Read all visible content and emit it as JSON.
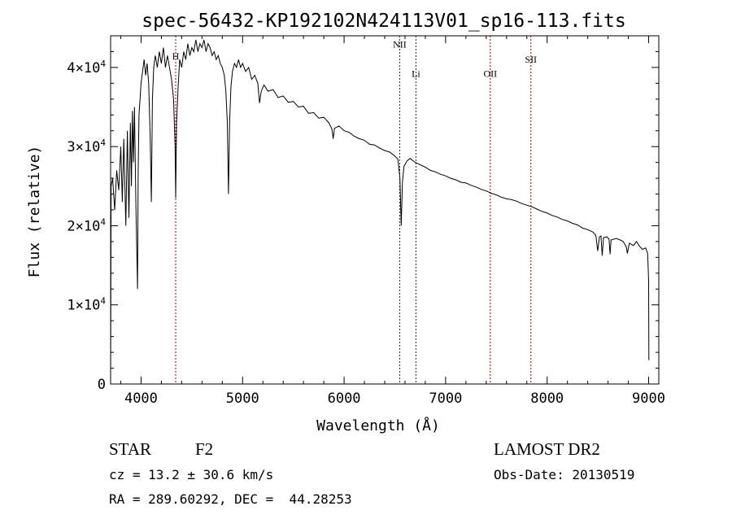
{
  "chart_data": {
    "type": "line",
    "title": "spec-56432-KP192102N424113V01_sp16-113.fits",
    "xlabel": "Wavelength (Å)",
    "ylabel": "Flux (relative)",
    "xlim": [
      3700,
      9100
    ],
    "ylim": [
      0,
      44000
    ],
    "x_ticks": [
      4000,
      5000,
      6000,
      7000,
      8000,
      9000
    ],
    "x_tick_labels": [
      "4000",
      "5000",
      "6000",
      "7000",
      "8000",
      "9000"
    ],
    "y_ticks": [
      0,
      10000,
      20000,
      30000,
      40000
    ],
    "y_tick_labels": [
      {
        "mant": "0",
        "exp": ""
      },
      {
        "mant": "1×10",
        "exp": "4"
      },
      {
        "mant": "2×10",
        "exp": "4"
      },
      {
        "mant": "3×10",
        "exp": "4"
      },
      {
        "mant": "4×10",
        "exp": "4"
      }
    ],
    "grid": false,
    "series": [
      {
        "points": [
          [
            3700,
            0
          ],
          [
            3705,
            25000
          ],
          [
            3720,
            26000
          ],
          [
            3740,
            22000
          ],
          [
            3760,
            27000
          ],
          [
            3780,
            24500
          ],
          [
            3800,
            30000
          ],
          [
            3815,
            23000
          ],
          [
            3830,
            31000
          ],
          [
            3850,
            20000
          ],
          [
            3865,
            32000
          ],
          [
            3880,
            21000
          ],
          [
            3895,
            33000
          ],
          [
            3905,
            25000
          ],
          [
            3915,
            34500
          ],
          [
            3925,
            28000
          ],
          [
            3935,
            35000
          ],
          [
            3950,
            22000
          ],
          [
            3965,
            12000
          ],
          [
            3972,
            27000
          ],
          [
            3980,
            34000
          ],
          [
            3990,
            36000
          ],
          [
            4000,
            38000
          ],
          [
            4015,
            39500
          ],
          [
            4030,
            41000
          ],
          [
            4045,
            39000
          ],
          [
            4060,
            40500
          ],
          [
            4075,
            38000
          ],
          [
            4090,
            31000
          ],
          [
            4101,
            23000
          ],
          [
            4112,
            36000
          ],
          [
            4125,
            40000
          ],
          [
            4140,
            41500
          ],
          [
            4160,
            40000
          ],
          [
            4180,
            42000
          ],
          [
            4200,
            40500
          ],
          [
            4220,
            42500
          ],
          [
            4240,
            40000
          ],
          [
            4260,
            41500
          ],
          [
            4280,
            40000
          ],
          [
            4300,
            38500
          ],
          [
            4320,
            36000
          ],
          [
            4335,
            30000
          ],
          [
            4341,
            23500
          ],
          [
            4350,
            33000
          ],
          [
            4365,
            37500
          ],
          [
            4380,
            41000
          ],
          [
            4400,
            40000
          ],
          [
            4420,
            42000
          ],
          [
            4440,
            41000
          ],
          [
            4460,
            43000
          ],
          [
            4480,
            41500
          ],
          [
            4500,
            42500
          ],
          [
            4520,
            42000
          ],
          [
            4540,
            43500
          ],
          [
            4560,
            42000
          ],
          [
            4580,
            43000
          ],
          [
            4600,
            42500
          ],
          [
            4620,
            43500
          ],
          [
            4640,
            42000
          ],
          [
            4660,
            43000
          ],
          [
            4680,
            42500
          ],
          [
            4700,
            41500
          ],
          [
            4720,
            42000
          ],
          [
            4740,
            41000
          ],
          [
            4760,
            41500
          ],
          [
            4780,
            40500
          ],
          [
            4800,
            40000
          ],
          [
            4820,
            39000
          ],
          [
            4835,
            37000
          ],
          [
            4850,
            33000
          ],
          [
            4861,
            24000
          ],
          [
            4872,
            33000
          ],
          [
            4885,
            37500
          ],
          [
            4900,
            39500
          ],
          [
            4920,
            40500
          ],
          [
            4940,
            40000
          ],
          [
            4960,
            41000
          ],
          [
            4980,
            40000
          ],
          [
            5000,
            40500
          ],
          [
            5030,
            39500
          ],
          [
            5060,
            40000
          ],
          [
            5090,
            38500
          ],
          [
            5120,
            39000
          ],
          [
            5150,
            38000
          ],
          [
            5167,
            35500
          ],
          [
            5184,
            37000
          ],
          [
            5210,
            37800
          ],
          [
            5250,
            37000
          ],
          [
            5300,
            37200
          ],
          [
            5350,
            36200
          ],
          [
            5400,
            36400
          ],
          [
            5450,
            35600
          ],
          [
            5500,
            35700
          ],
          [
            5550,
            35000
          ],
          [
            5600,
            35100
          ],
          [
            5650,
            34200
          ],
          [
            5700,
            34300
          ],
          [
            5750,
            33600
          ],
          [
            5800,
            33700
          ],
          [
            5850,
            33000
          ],
          [
            5880,
            32200
          ],
          [
            5893,
            31000
          ],
          [
            5905,
            32300
          ],
          [
            5950,
            32600
          ],
          [
            6000,
            32000
          ],
          [
            6050,
            31800
          ],
          [
            6100,
            31300
          ],
          [
            6150,
            31000
          ],
          [
            6200,
            30800
          ],
          [
            6250,
            30300
          ],
          [
            6300,
            30200
          ],
          [
            6350,
            29800
          ],
          [
            6400,
            29500
          ],
          [
            6450,
            29300
          ],
          [
            6500,
            28800
          ],
          [
            6530,
            28400
          ],
          [
            6550,
            26000
          ],
          [
            6563,
            20000
          ],
          [
            6575,
            25500
          ],
          [
            6590,
            27500
          ],
          [
            6620,
            28200
          ],
          [
            6650,
            28500
          ],
          [
            6700,
            28000
          ],
          [
            6750,
            27700
          ],
          [
            6800,
            27400
          ],
          [
            6850,
            27000
          ],
          [
            6900,
            26800
          ],
          [
            6950,
            26500
          ],
          [
            7000,
            26300
          ],
          [
            7050,
            26000
          ],
          [
            7100,
            25800
          ],
          [
            7150,
            25500
          ],
          [
            7200,
            25400
          ],
          [
            7250,
            25100
          ],
          [
            7300,
            24900
          ],
          [
            7350,
            24600
          ],
          [
            7400,
            24400
          ],
          [
            7450,
            24100
          ],
          [
            7500,
            23900
          ],
          [
            7550,
            23600
          ],
          [
            7600,
            23400
          ],
          [
            7650,
            23300
          ],
          [
            7700,
            23100
          ],
          [
            7750,
            22800
          ],
          [
            7800,
            22600
          ],
          [
            7850,
            22400
          ],
          [
            7900,
            22100
          ],
          [
            7950,
            21800
          ],
          [
            8000,
            21600
          ],
          [
            8050,
            21300
          ],
          [
            8100,
            21100
          ],
          [
            8150,
            20800
          ],
          [
            8200,
            20600
          ],
          [
            8250,
            20300
          ],
          [
            8300,
            20100
          ],
          [
            8350,
            19700
          ],
          [
            8400,
            19500
          ],
          [
            8450,
            19200
          ],
          [
            8480,
            18800
          ],
          [
            8498,
            16800
          ],
          [
            8515,
            18600
          ],
          [
            8530,
            18700
          ],
          [
            8542,
            16200
          ],
          [
            8555,
            18500
          ],
          [
            8590,
            18600
          ],
          [
            8610,
            18300
          ],
          [
            8620,
            16400
          ],
          [
            8630,
            18200
          ],
          [
            8680,
            18400
          ],
          [
            8720,
            18200
          ],
          [
            8750,
            18000
          ],
          [
            8780,
            17300
          ],
          [
            8790,
            16500
          ],
          [
            8810,
            17800
          ],
          [
            8850,
            17500
          ],
          [
            8880,
            18000
          ],
          [
            8910,
            17400
          ],
          [
            8940,
            17000
          ],
          [
            8970,
            17200
          ],
          [
            8990,
            16500
          ],
          [
            9000,
            13000
          ],
          [
            9002,
            3000
          ]
        ]
      }
    ],
    "lines": [
      {
        "label": "H",
        "x": 4341,
        "label_y": 41000
      },
      {
        "label": "NII",
        "x": 6548,
        "label_y": 42500
      },
      {
        "label": "Li",
        "x": 6708,
        "label_y": 38800
      },
      {
        "label": "OII",
        "x": 7440,
        "label_y": 38800
      },
      {
        "label": "SII",
        "x": 7840,
        "label_y": 40600
      }
    ],
    "annotations": {
      "object_type": "STAR",
      "subclass": "F2",
      "survey": "LAMOST DR2",
      "cz": "cz = 13.2 ± 30.6 km/s",
      "radec": "RA = 289.60292, DEC =  44.28253",
      "obs_date": "Obs-Date: 20130519"
    },
    "colors": {
      "spectrum": "#000000",
      "line_markers": "#8b0000",
      "axes": "#000000"
    }
  }
}
